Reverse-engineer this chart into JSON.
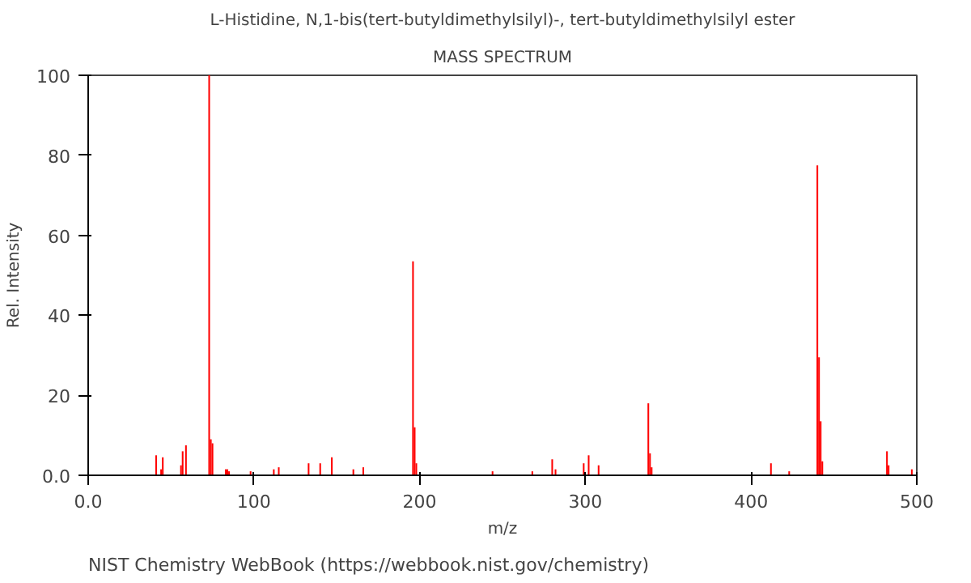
{
  "chart_data": {
    "type": "bar",
    "title": "L-Histidine, N,1-bis(tert-butyldimethylsilyl)-, tert-butyldimethylsilyl ester",
    "subtitle": "MASS SPECTRUM",
    "xlabel": "m/z",
    "ylabel": "Rel. Intensity",
    "x": [
      41,
      44,
      45,
      56,
      57,
      59,
      73,
      74,
      75,
      83,
      84,
      85,
      98,
      112,
      115,
      133,
      140,
      147,
      160,
      166,
      196,
      197,
      198,
      244,
      268,
      280,
      282,
      299,
      302,
      308,
      338,
      339,
      340,
      412,
      423,
      440,
      441,
      442,
      443,
      482,
      483,
      497
    ],
    "values": [
      5,
      1.5,
      4.5,
      2.5,
      6,
      7.5,
      100,
      9,
      8,
      1.5,
      1.5,
      1,
      1,
      1.5,
      2,
      3,
      3,
      4.5,
      1.5,
      2,
      53.5,
      12,
      3,
      1,
      1,
      4,
      1.5,
      3,
      5,
      2.5,
      18,
      5.5,
      2,
      3,
      1,
      77.5,
      29.5,
      13.5,
      3.5,
      6,
      2.5,
      1.5
    ],
    "color": "#ff0000",
    "xlim": [
      0,
      500
    ],
    "ylim": [
      0,
      100
    ],
    "xticks": [
      {
        "value": 0,
        "label": "0.0"
      },
      100,
      200,
      300,
      400,
      500
    ],
    "yticks": [
      {
        "value": 0,
        "label": "0.0"
      },
      20,
      40,
      60,
      80,
      100
    ],
    "grid": false,
    "annotations": [
      "NIST Chemistry WebBook (https://webbook.nist.gov/chemistry)"
    ]
  }
}
